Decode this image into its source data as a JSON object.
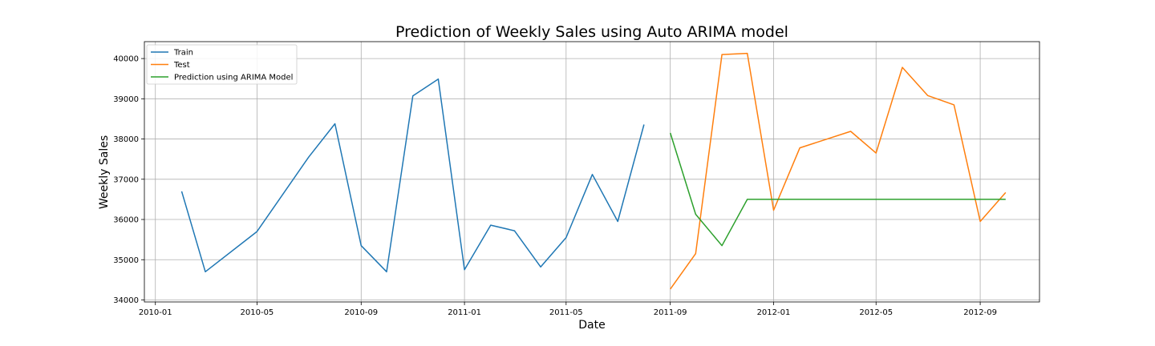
{
  "chart_data": {
    "type": "line",
    "title": "Prediction of Weekly Sales using Auto ARIMA model",
    "xlabel": "Date",
    "ylabel": "Weekly Sales",
    "xlim": [
      "2009-12-19",
      "2012-11-10"
    ],
    "ylim": [
      33950,
      40420
    ],
    "x_ticks": [
      "2010-01",
      "2010-05",
      "2010-09",
      "2011-01",
      "2011-05",
      "2011-09",
      "2012-01",
      "2012-05",
      "2012-09"
    ],
    "y_ticks": [
      34000,
      35000,
      36000,
      37000,
      38000,
      39000,
      40000
    ],
    "grid": true,
    "legend_position": "top-left",
    "series": [
      {
        "name": "Train",
        "color": "#1f77b4",
        "x": [
          "2010-02-01",
          "2010-03-01",
          "2010-05-01",
          "2010-07-01",
          "2010-08-01",
          "2010-09-01",
          "2010-10-01",
          "2010-11-01",
          "2010-12-01",
          "2011-01-01",
          "2011-02-01",
          "2011-03-01",
          "2011-04-01",
          "2011-05-01",
          "2011-06-01",
          "2011-07-01",
          "2011-08-01"
        ],
        "y": [
          36700,
          34700,
          35700,
          37550,
          38380,
          35350,
          34700,
          39070,
          39490,
          34750,
          35860,
          35720,
          34820,
          35550,
          37120,
          35950,
          38360
        ]
      },
      {
        "name": "Test",
        "color": "#ff7f0e",
        "x": [
          "2011-09-01",
          "2011-10-01",
          "2011-11-01",
          "2011-12-01",
          "2012-01-01",
          "2012-02-01",
          "2012-04-01",
          "2012-05-01",
          "2012-06-01",
          "2012-07-01",
          "2012-08-01",
          "2012-09-01",
          "2012-10-01"
        ],
        "y": [
          34270,
          35150,
          40100,
          40130,
          36230,
          37780,
          38190,
          37650,
          39780,
          39080,
          38850,
          35950,
          36670
        ]
      },
      {
        "name": "Prediction using ARIMA Model",
        "color": "#2ca02c",
        "x": [
          "2011-09-01",
          "2011-10-01",
          "2011-11-01",
          "2011-12-01",
          "2012-01-01",
          "2012-10-01"
        ],
        "y": [
          38150,
          36130,
          35350,
          36500,
          36500,
          36500
        ]
      }
    ]
  }
}
